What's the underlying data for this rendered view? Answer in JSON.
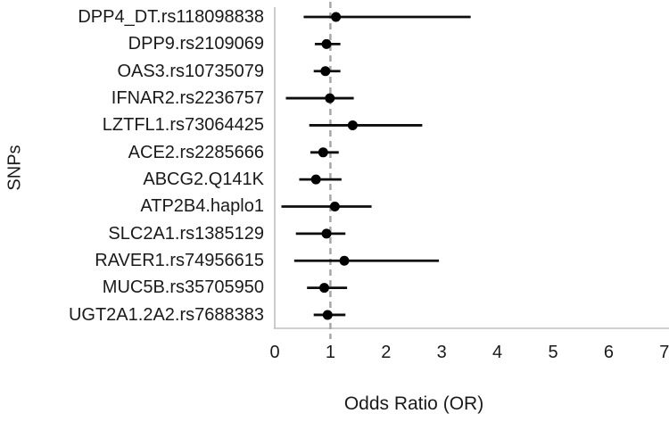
{
  "chart_data": {
    "type": "scatter",
    "subtype": "forest-plot",
    "xlabel": "Odds Ratio (OR)",
    "ylabel": "SNPs",
    "xlim": [
      0,
      7
    ],
    "xticks": [
      0,
      1,
      2,
      3,
      4,
      5,
      6,
      7
    ],
    "reference_line_x": 1,
    "grid": false,
    "legend": false,
    "series": [
      {
        "label": "DPP4_DT.rs118098838",
        "or": 1.1,
        "ci_low": 0.52,
        "ci_high": 3.52
      },
      {
        "label": "DPP9.rs2109069",
        "or": 0.93,
        "ci_low": 0.72,
        "ci_high": 1.18
      },
      {
        "label": "OAS3.rs10735079",
        "or": 0.91,
        "ci_low": 0.7,
        "ci_high": 1.18
      },
      {
        "label": "IFNAR2.rs2236757",
        "or": 0.99,
        "ci_low": 0.2,
        "ci_high": 1.42
      },
      {
        "label": "LZTFL1.rs73064425",
        "or": 1.4,
        "ci_low": 0.62,
        "ci_high": 2.65
      },
      {
        "label": "ACE2.rs2285666",
        "or": 0.87,
        "ci_low": 0.64,
        "ci_high": 1.15
      },
      {
        "label": "ABCG2.Q141K",
        "or": 0.74,
        "ci_low": 0.44,
        "ci_high": 1.2
      },
      {
        "label": "ATP2B4.haplo1",
        "or": 1.08,
        "ci_low": 0.12,
        "ci_high": 1.74
      },
      {
        "label": "SLC2A1.rs1385129",
        "or": 0.93,
        "ci_low": 0.38,
        "ci_high": 1.27
      },
      {
        "label": "RAVER1.rs74956615",
        "or": 1.25,
        "ci_low": 0.35,
        "ci_high": 2.95
      },
      {
        "label": "MUC5B.rs35705950",
        "or": 0.89,
        "ci_low": 0.58,
        "ci_high": 1.3
      },
      {
        "label": "UGT2A1.2A2.rs7688383",
        "or": 0.95,
        "ci_low": 0.7,
        "ci_high": 1.27
      }
    ],
    "colors": {
      "marker": "#000000",
      "ci_line": "#0d0d0d",
      "reference_line": "#a6a6a6",
      "axis_line": "#bfbfbf",
      "text": "#1a1a1a"
    }
  }
}
